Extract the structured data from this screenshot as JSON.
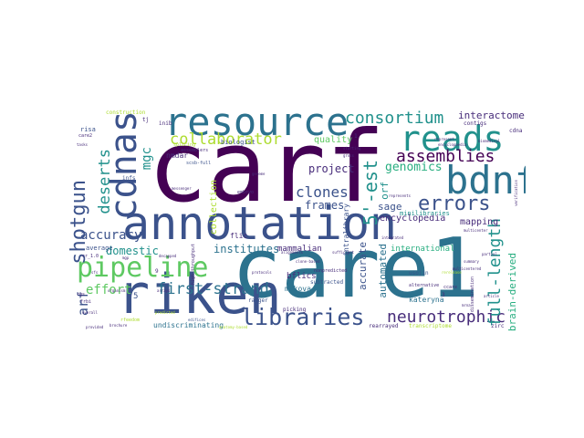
{
  "word_cloud": {
    "palette": [
      "#440154",
      "#472c7a",
      "#3b528b",
      "#2c728e",
      "#21918c",
      "#28ae80",
      "#5ec962",
      "#addc30",
      "#fde725"
    ],
    "words": [
      {
        "text": "carf",
        "color": "#440154"
      },
      {
        "text": "care1",
        "color": "#2c728e"
      },
      {
        "text": "annotation",
        "color": "#3b528b"
      },
      {
        "text": "resource",
        "color": "#2c728e"
      },
      {
        "text": "riken",
        "color": "#3b528b"
      },
      {
        "text": "pipeline",
        "color": "#5ec962"
      },
      {
        "text": "reads",
        "color": "#21918c"
      },
      {
        "text": "bdnf",
        "color": "#2c728e"
      },
      {
        "text": "cdnas",
        "color": "#3b528b"
      },
      {
        "text": "libraries",
        "color": "#3b528b"
      },
      {
        "text": "collaborator",
        "color": "#addc30"
      },
      {
        "text": "consortium",
        "color": "#21918c"
      },
      {
        "text": "errors",
        "color": "#3b528b"
      },
      {
        "text": "assemblies",
        "color": "#440154"
      },
      {
        "text": "neurotrophic",
        "color": "#472c7a"
      },
      {
        "text": "full-length",
        "color": "#21918c"
      },
      {
        "text": "shotgun",
        "color": "#3b528b"
      },
      {
        "text": "first-strand",
        "color": "#2c728e"
      },
      {
        "text": "deserts",
        "color": "#21918c"
      },
      {
        "text": "clones",
        "color": "#3b528b"
      },
      {
        "text": "5'-est",
        "color": "#21918c"
      },
      {
        "text": "accuracy",
        "color": "#3b528b"
      },
      {
        "text": "domestic",
        "color": "#21918c"
      },
      {
        "text": "effort",
        "color": "#5ec962"
      },
      {
        "text": "arf",
        "color": "#3b528b"
      },
      {
        "text": "mgc",
        "color": "#21918c"
      },
      {
        "text": "genomics",
        "color": "#28ae80"
      },
      {
        "text": "project",
        "color": "#472c7a"
      },
      {
        "text": "frames",
        "color": "#3b528b"
      },
      {
        "text": "institutes",
        "color": "#2c728e"
      },
      {
        "text": "sage",
        "color": "#3b528b"
      },
      {
        "text": "encyclopedia",
        "color": "#472c7a"
      },
      {
        "text": "quality",
        "color": "#5ec962"
      },
      {
        "text": "interactome",
        "color": "#472c7a"
      },
      {
        "text": "orf",
        "color": "#21918c"
      },
      {
        "text": "brain-derived",
        "color": "#28ae80"
      },
      {
        "text": "automated",
        "color": "#2c728e"
      },
      {
        "text": "accurate",
        "color": "#3b528b"
      },
      {
        "text": "collection",
        "color": "#addc30"
      },
      {
        "text": "mapping",
        "color": "#472c7a"
      },
      {
        "text": "international",
        "color": "#28ae80"
      },
      {
        "text": "mammalian",
        "color": "#472c7a"
      },
      {
        "text": "bflics",
        "color": "#472c7a"
      },
      {
        "text": "makova",
        "color": "#2c728e"
      },
      {
        "text": "kateryna",
        "color": "#2c728e"
      },
      {
        "text": "undiscriminating",
        "color": "#2c728e"
      },
      {
        "text": "flic",
        "color": "#472c7a"
      },
      {
        "text": "average",
        "color": "#3b528b"
      },
      {
        "text": "nmdar",
        "color": "#472c7a"
      },
      {
        "text": "biologist",
        "color": "#3b528b"
      },
      {
        "text": "subtracted",
        "color": "#3b528b"
      },
      {
        "text": "intralibrary",
        "color": "#3b528b"
      },
      {
        "text": "minilibraries",
        "color": "#21918c"
      },
      {
        "text": "construction",
        "color": "#addc30"
      },
      {
        "text": "risa",
        "color": "#3b528b"
      },
      {
        "text": "contigs",
        "color": "#472c7a"
      },
      {
        "text": "cdna",
        "color": "#472c7a"
      },
      {
        "text": "ranger",
        "color": "#3b528b"
      },
      {
        "text": "picking",
        "color": "#472c7a"
      },
      {
        "text": "infs",
        "color": "#3b528b"
      },
      {
        "text": "inib",
        "color": "#472c7a"
      },
      {
        "text": "splicing",
        "color": "#addc30"
      },
      {
        "text": "rearrayed",
        "color": "#472c7a"
      },
      {
        "text": "transcriptome",
        "color": "#addc30"
      },
      {
        "text": "usojin",
        "color": "#3b528b"
      },
      {
        "text": "ccare",
        "color": "#472c7a"
      },
      {
        "text": "alternative",
        "color": "#472c7a"
      },
      {
        "text": "assemblers",
        "color": "#472c7a"
      },
      {
        "text": "high-throughput",
        "color": "#472c7a"
      },
      {
        "text": "anatomy-based",
        "color": "#addc30"
      },
      {
        "text": "zirc",
        "color": "#472c7a"
      },
      {
        "text": "dissemination",
        "color": "#472c7a"
      },
      {
        "text": "embryo",
        "color": "#472c7a"
      },
      {
        "text": "nonpredicted",
        "color": "#472c7a"
      },
      {
        "text": "cr_1.0",
        "color": "#472c7a"
      },
      {
        "text": "decapped",
        "color": "#472c7a"
      },
      {
        "text": "brochure",
        "color": "#472c7a"
      },
      {
        "text": "rfeedom",
        "color": "#addc30"
      },
      {
        "text": "edifices",
        "color": "#3b528b"
      },
      {
        "text": "scsb-full",
        "color": "#3b528b"
      },
      {
        "text": "starting",
        "color": "#472c7a"
      },
      {
        "text": "represent",
        "color": "#472c7a"
      },
      {
        "text": "biomedical",
        "color": "#472c7a"
      },
      {
        "text": "rerelease",
        "color": "#addc30"
      },
      {
        "text": "encyclopaedia",
        "color": "#472c7a"
      },
      {
        "text": "protocols",
        "color": "#472c7a"
      },
      {
        "text": "organism",
        "color": "#472c7a"
      },
      {
        "text": "messenger",
        "color": "#472c7a"
      },
      {
        "text": "tasks",
        "color": "#472c7a"
      },
      {
        "text": "alignments",
        "color": "#472c7a"
      },
      {
        "text": "clone-based",
        "color": "#472c7a"
      },
      {
        "text": "overall",
        "color": "#472c7a"
      },
      {
        "text": "multicenter",
        "color": "#472c7a"
      },
      {
        "text": "summary",
        "color": "#472c7a"
      },
      {
        "text": "verification",
        "color": "#472c7a"
      },
      {
        "text": "geneme",
        "color": "#472c7a"
      },
      {
        "text": "arrays",
        "color": "#472c7a"
      },
      {
        "text": "represents",
        "color": "#472c7a"
      },
      {
        "text": "integrated",
        "color": "#472c7a"
      },
      {
        "text": "predicted",
        "color": "#addc30"
      },
      {
        "text": "multicentered",
        "color": "#472c7a"
      },
      {
        "text": "gross",
        "color": "#472c7a"
      },
      {
        "text": "rgs",
        "color": "#472c7a"
      },
      {
        "text": "frbi",
        "color": "#472c7a"
      },
      {
        "text": "care2",
        "color": "#472c7a"
      },
      {
        "text": "tj",
        "color": "#472c7a"
      },
      {
        "text": "5",
        "color": "#3b528b"
      },
      {
        "text": "9",
        "color": "#472c7a"
      },
      {
        "text": "1",
        "color": "#472c7a"
      },
      {
        "text": "3",
        "color": "#472c7a"
      },
      {
        "text": "mgp",
        "color": "#472c7a"
      },
      {
        "text": "sfs",
        "color": "#472c7a"
      },
      {
        "text": "mrna",
        "color": "#472c7a"
      },
      {
        "text": "sufficient",
        "color": "#472c7a"
      },
      {
        "text": "partial",
        "color": "#472c7a"
      },
      {
        "text": "article",
        "color": "#472c7a"
      },
      {
        "text": "provided",
        "color": "#472c7a"
      }
    ]
  }
}
